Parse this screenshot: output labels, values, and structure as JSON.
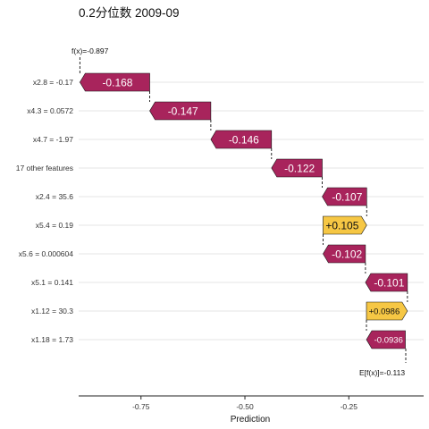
{
  "chart_data": {
    "type": "waterfall",
    "title": "0.2分位数 2009-09",
    "xlabel": "Prediction",
    "xlim": [
      -0.9,
      -0.07
    ],
    "xticks": [
      -0.75,
      -0.5,
      -0.25
    ],
    "xtick_labels": [
      "-0.75",
      "-0.50",
      "-0.25"
    ],
    "fx_label": "f(x)=-0.897",
    "efx_label": "E[f(x)]=-0.113",
    "fx": -0.897,
    "efx": -0.113,
    "grid": "horizontal",
    "colors": {
      "negative": "#a8245c",
      "positive": "#f6c744",
      "negative_text": "#ffffff",
      "positive_text": "#111111"
    },
    "features": [
      {
        "label": "x2.8 = -0.17",
        "value": -0.168,
        "value_label": "-0.168"
      },
      {
        "label": "x4.3 = 0.0572",
        "value": -0.147,
        "value_label": "-0.147"
      },
      {
        "label": "x4.7 = -1.97",
        "value": -0.146,
        "value_label": "-0.146"
      },
      {
        "label": "17 other features",
        "value": -0.122,
        "value_label": "-0.122"
      },
      {
        "label": "x2.4 = 35.6",
        "value": -0.107,
        "value_label": "-0.107"
      },
      {
        "label": "x5.4 = 0.19",
        "value": 0.105,
        "value_label": "+0.105"
      },
      {
        "label": "x5.6 = 0.000604",
        "value": -0.102,
        "value_label": "-0.102"
      },
      {
        "label": "x5.1 = 0.141",
        "value": -0.101,
        "value_label": "-0.101"
      },
      {
        "label": "x1.12 = 30.3",
        "value": 0.0986,
        "value_label": "+0.0986"
      },
      {
        "label": "x1.18 = 1.73",
        "value": -0.0936,
        "value_label": "-0.0936"
      }
    ]
  }
}
